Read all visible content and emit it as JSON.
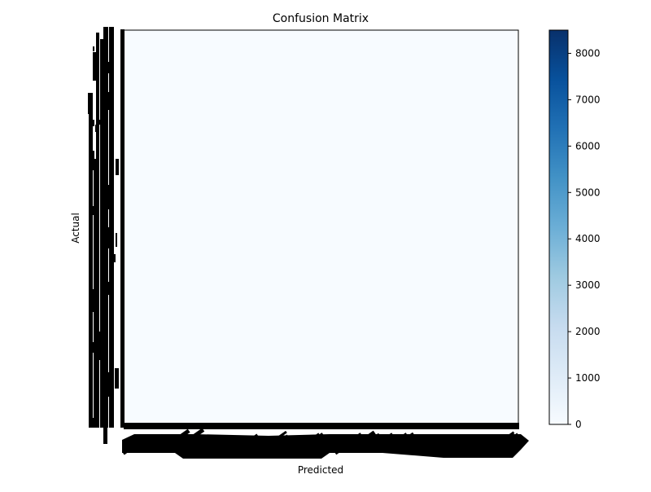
{
  "chart_data": {
    "type": "heatmap",
    "title": "Confusion Matrix",
    "xlabel": "Predicted",
    "ylabel": "Actual",
    "colormap": "Blues",
    "matrix_background_color": "#f7fbff",
    "colorbar": {
      "min": 0,
      "max": 8500,
      "ticks": [
        0,
        1000,
        2000,
        3000,
        4000,
        5000,
        6000,
        7000,
        8000
      ],
      "tick_labels": [
        "0",
        "1000",
        "2000",
        "3000",
        "4000",
        "5000",
        "6000",
        "7000",
        "8000"
      ],
      "colors": [
        "#f7fbff",
        "#deebf7",
        "#c6dbef",
        "#9ecae1",
        "#6baed6",
        "#4292c6",
        "#2171b5",
        "#08519c",
        "#08306b"
      ]
    },
    "category_tick_labels": "illegible (dense overlapping labels on both axes)"
  }
}
